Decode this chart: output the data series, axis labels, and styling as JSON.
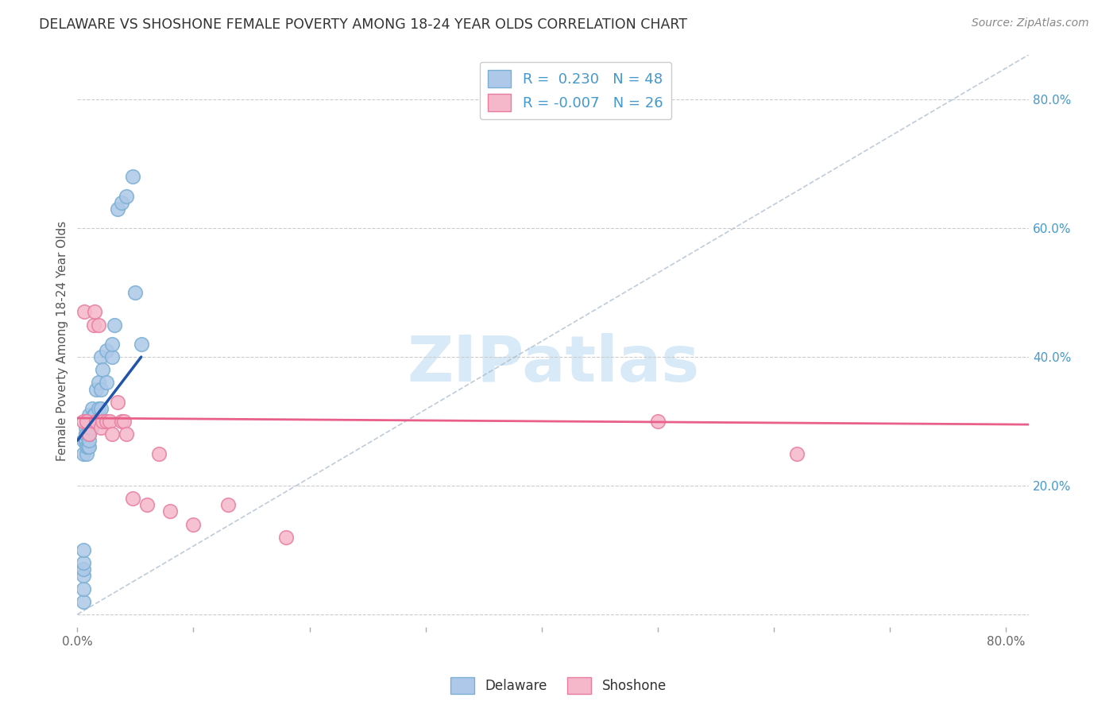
{
  "title": "DELAWARE VS SHOSHONE FEMALE POVERTY AMONG 18-24 YEAR OLDS CORRELATION CHART",
  "source": "Source: ZipAtlas.com",
  "ylabel": "Female Poverty Among 18-24 Year Olds",
  "xlim": [
    0.0,
    0.82
  ],
  "ylim": [
    -0.02,
    0.87
  ],
  "delaware_R": 0.23,
  "delaware_N": 48,
  "shoshone_R": -0.007,
  "shoshone_N": 26,
  "delaware_color": "#adc8e8",
  "delaware_edge": "#7aafd4",
  "delaware_trend_color": "#2255aa",
  "shoshone_color": "#f5b8ca",
  "shoshone_edge": "#e87da0",
  "shoshone_trend_color": "#e8608a",
  "ref_line_color": "#aabbcc",
  "grid_color": "#cccccc",
  "background": "#ffffff",
  "title_color": "#333333",
  "right_axis_color": "#4499cc",
  "legend_R_color": "#2255aa",
  "legend_N_color": "#4499cc",
  "watermark_color": "#d8eaf8",
  "delaware_x": [
    0.005,
    0.005,
    0.005,
    0.005,
    0.005,
    0.005,
    0.005,
    0.005,
    0.007,
    0.007,
    0.007,
    0.007,
    0.007,
    0.008,
    0.008,
    0.008,
    0.008,
    0.009,
    0.009,
    0.009,
    0.01,
    0.01,
    0.01,
    0.01,
    0.01,
    0.01,
    0.012,
    0.013,
    0.014,
    0.015,
    0.016,
    0.018,
    0.018,
    0.02,
    0.02,
    0.02,
    0.022,
    0.025,
    0.025,
    0.03,
    0.03,
    0.032,
    0.035,
    0.038,
    0.042,
    0.048,
    0.05,
    0.055
  ],
  "delaware_y": [
    0.02,
    0.04,
    0.06,
    0.07,
    0.08,
    0.1,
    0.25,
    0.27,
    0.27,
    0.27,
    0.28,
    0.28,
    0.29,
    0.25,
    0.26,
    0.28,
    0.3,
    0.26,
    0.28,
    0.3,
    0.26,
    0.27,
    0.28,
    0.29,
    0.3,
    0.31,
    0.29,
    0.32,
    0.31,
    0.31,
    0.35,
    0.32,
    0.36,
    0.32,
    0.35,
    0.4,
    0.38,
    0.36,
    0.41,
    0.4,
    0.42,
    0.45,
    0.63,
    0.64,
    0.65,
    0.68,
    0.5,
    0.42
  ],
  "shoshone_x": [
    0.005,
    0.006,
    0.008,
    0.01,
    0.014,
    0.015,
    0.016,
    0.018,
    0.02,
    0.022,
    0.025,
    0.028,
    0.03,
    0.035,
    0.038,
    0.04,
    0.042,
    0.048,
    0.06,
    0.07,
    0.08,
    0.1,
    0.13,
    0.18,
    0.5,
    0.62
  ],
  "shoshone_y": [
    0.3,
    0.47,
    0.3,
    0.28,
    0.45,
    0.47,
    0.3,
    0.45,
    0.29,
    0.3,
    0.3,
    0.3,
    0.28,
    0.33,
    0.3,
    0.3,
    0.28,
    0.18,
    0.17,
    0.25,
    0.16,
    0.14,
    0.17,
    0.12,
    0.3,
    0.25
  ],
  "delaware_trend_x": [
    0.0,
    0.055
  ],
  "delaware_trend_y": [
    0.27,
    0.4
  ],
  "shoshone_trend_x": [
    0.0,
    0.82
  ],
  "shoshone_trend_y": [
    0.305,
    0.295
  ],
  "ref_line_x": [
    0.0,
    0.82
  ],
  "ref_line_y": [
    0.0,
    0.87
  ],
  "yticks": [
    0.0,
    0.2,
    0.4,
    0.6,
    0.8
  ],
  "ytick_labels": [
    "",
    "20.0%",
    "40.0%",
    "60.0%",
    "80.0%"
  ],
  "xticks": [
    0.0,
    0.1,
    0.2,
    0.3,
    0.4,
    0.5,
    0.6,
    0.7,
    0.8
  ],
  "xtick_labels_show": [
    "0.0%",
    "",
    "",
    "",
    "",
    "",
    "",
    "",
    "80.0%"
  ]
}
